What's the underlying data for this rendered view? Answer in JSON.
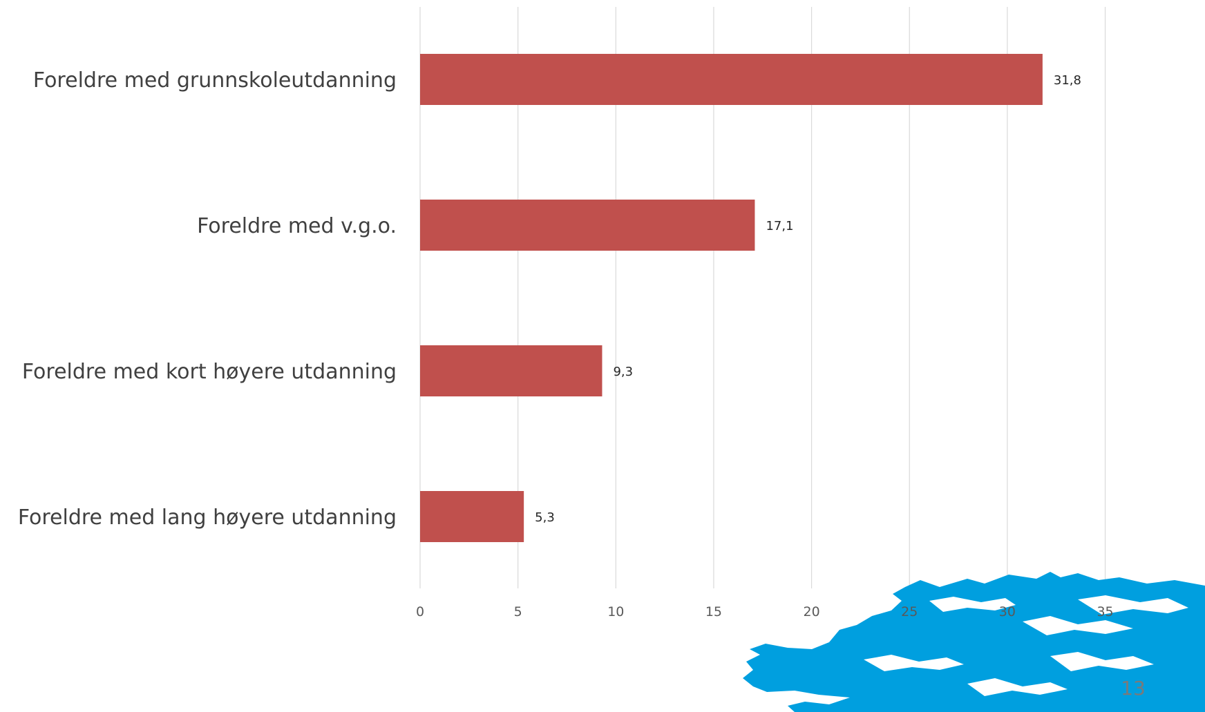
{
  "chart_data": {
    "type": "bar",
    "orientation": "horizontal",
    "categories": [
      "Foreldre med grunnskoleutdanning",
      "Foreldre med v.g.o.",
      "Foreldre med kort høyere utdanning",
      "Foreldre med lang høyere utdanning"
    ],
    "values": [
      31.8,
      17.1,
      9.3,
      5.3
    ],
    "value_labels": [
      "31,8",
      "17,1",
      "9,3",
      "5,3"
    ],
    "title": "",
    "xlabel": "",
    "ylabel": "",
    "xlim": [
      0,
      40
    ],
    "xticks": [
      0,
      5,
      10,
      15,
      20,
      25,
      30,
      35
    ],
    "xtick_labels": [
      "0",
      "5",
      "10",
      "15",
      "20",
      "25",
      "30",
      "35"
    ],
    "grid": "vertical",
    "legend": "none",
    "bar_color": "#c0504d",
    "grid_color": "#d9d9d9"
  },
  "decoration": {
    "map_color": "#009fdf",
    "page_number": "13"
  }
}
